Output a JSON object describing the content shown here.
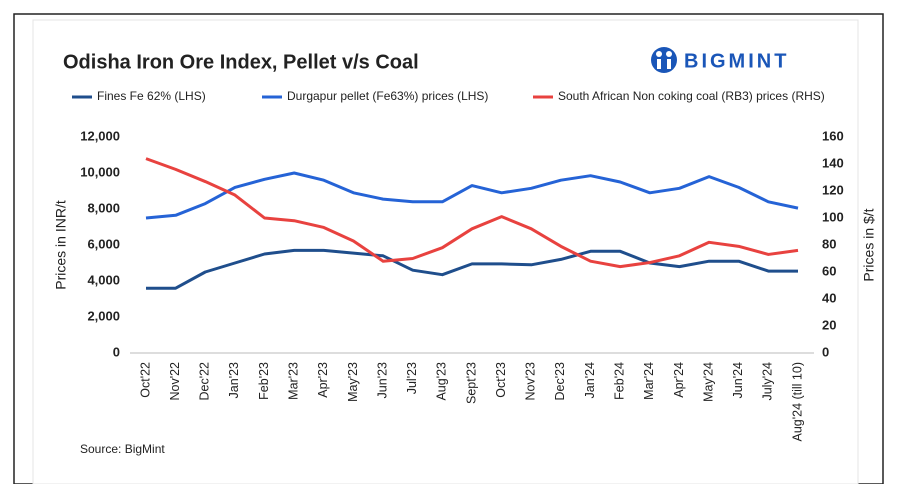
{
  "chart_data": {
    "type": "line",
    "title": "Odisha Iron Ore Index, Pellet v/s Coal",
    "logo": "BIGMINT",
    "source": "Source: BigMint",
    "ylabel": "Prices in INR/t",
    "y2label": "Prices in $/t",
    "categories": [
      "Oct'22",
      "Nov'22",
      "Dec'22",
      "Jan'23",
      "Feb'23",
      "Mar'23",
      "Apr'23",
      "May'23",
      "Jun'23",
      "Jul'23",
      "Aug'23",
      "Sept'23",
      "Oct'23",
      "Nov'23",
      "Dec'23",
      "Jan'24",
      "Feb'24",
      "Mar'24",
      "Apr'24",
      "May'24",
      "Jun'24",
      "July'24",
      "Aug'24 (till 10)"
    ],
    "series": [
      {
        "name": "Fines Fe 62% (LHS)",
        "color": "#1f4e8c",
        "axis": "y",
        "values": [
          3600,
          3600,
          4500,
          5000,
          5500,
          5700,
          5700,
          5550,
          5400,
          4600,
          4350,
          4950,
          4950,
          4900,
          5200,
          5650,
          5650,
          5000,
          4800,
          5100,
          5100,
          4550,
          4550
        ]
      },
      {
        "name": "Durgapur pellet (Fe63%) prices (LHS)",
        "color": "#2563d6",
        "axis": "y",
        "values": [
          7500,
          7650,
          8300,
          9200,
          9650,
          10000,
          9600,
          8900,
          8550,
          8400,
          8400,
          9300,
          8900,
          9150,
          9600,
          9850,
          9500,
          8900,
          9150,
          9800,
          9200,
          8400,
          8050
        ]
      },
      {
        "name": "South African Non coking coal (RB3) prices (RHS)",
        "color": "#e8423f",
        "axis": "y2",
        "values": [
          144,
          136,
          127,
          117,
          100,
          98,
          93,
          83,
          68,
          70,
          78,
          92,
          101,
          92,
          79,
          68,
          64,
          67,
          72,
          82,
          79,
          73,
          76
        ]
      }
    ],
    "ylim": [
      0,
      12000
    ],
    "yticks": [
      0,
      {
        "value": 2000,
        "label": "2,000"
      },
      {
        "value": 4000,
        "label": "4,000"
      },
      {
        "value": 6000,
        "label": "6,000"
      },
      {
        "value": 8000,
        "label": "8,000"
      },
      {
        "value": 10000,
        "label": "10,000"
      },
      {
        "value": 12000,
        "label": "12,000"
      }
    ],
    "y2lim": [
      0,
      160
    ],
    "y2ticks": [
      0,
      20,
      40,
      60,
      80,
      100,
      120,
      140,
      160
    ],
    "grid": false
  }
}
